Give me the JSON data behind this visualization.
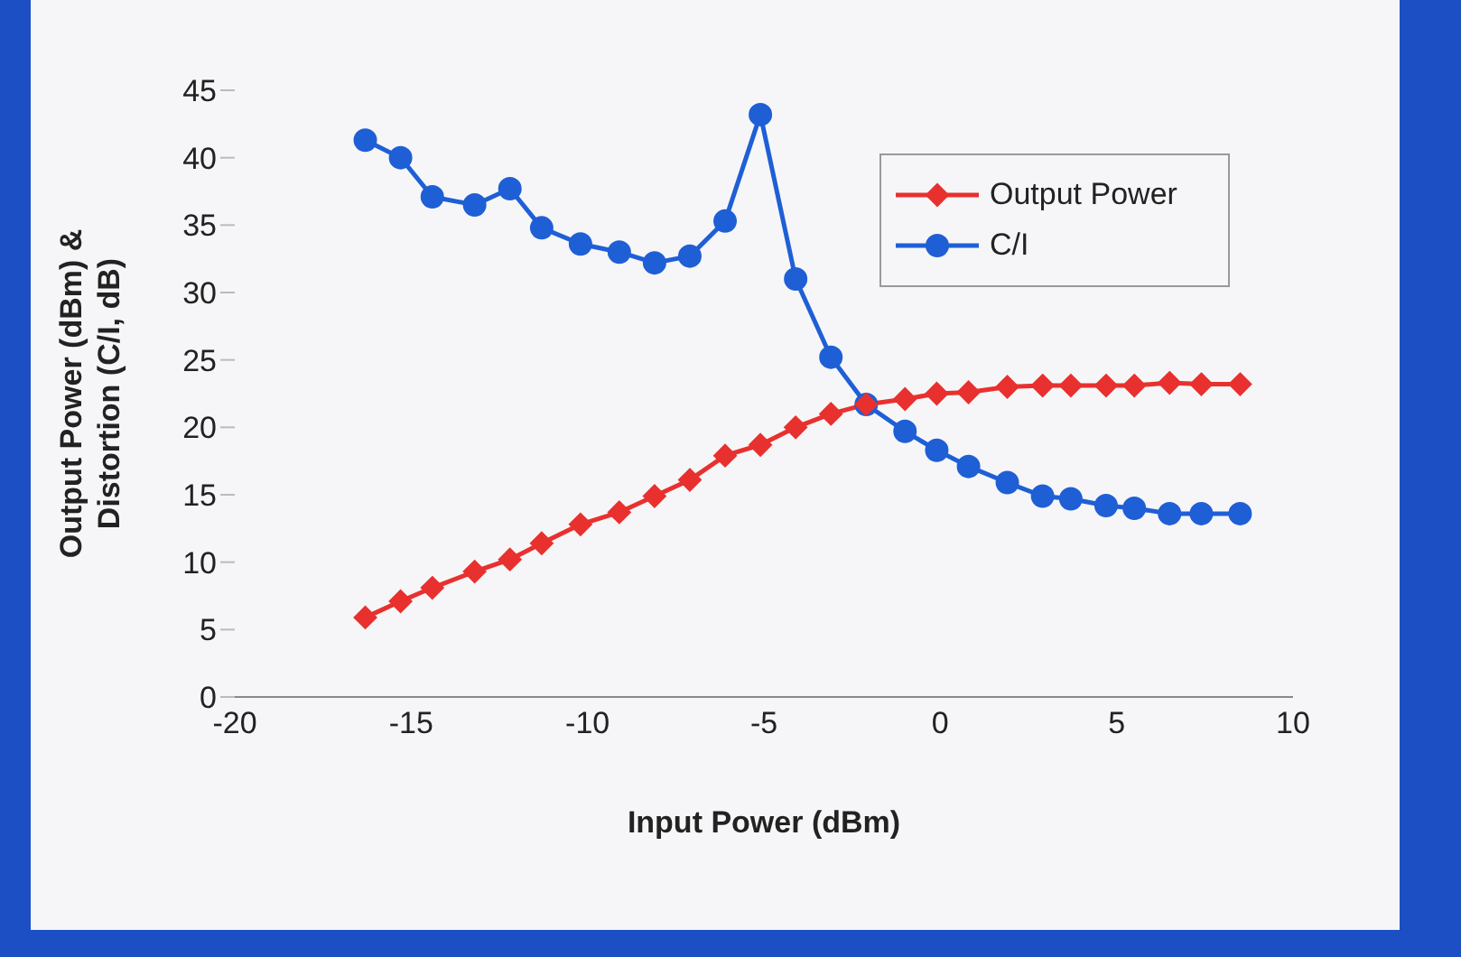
{
  "chart_data": {
    "type": "line",
    "xlabel": "Input Power (dBm)",
    "ylabel": "Output Power (dBm) & Distortion (C/I, dB)",
    "x": [
      -16.3,
      -15.3,
      -14.4,
      -13.2,
      -12.2,
      -11.3,
      -10.2,
      -9.1,
      -8.1,
      -7.1,
      -6.1,
      -5.1,
      -4.1,
      -3.1,
      -2.1,
      -1.0,
      -0.1,
      0.8,
      1.9,
      2.9,
      3.7,
      4.7,
      5.5,
      6.5,
      7.4,
      8.5
    ],
    "series": [
      {
        "name": "Output Power",
        "color": "#e8312f",
        "marker": "diamond",
        "values": [
          5.9,
          7.1,
          8.1,
          9.3,
          10.2,
          11.4,
          12.8,
          13.7,
          14.9,
          16.1,
          17.9,
          18.7,
          20.0,
          21.0,
          21.7,
          22.1,
          22.5,
          22.6,
          23.0,
          23.1,
          23.1,
          23.1,
          23.1,
          23.3,
          23.2,
          23.2
        ]
      },
      {
        "name": "C/I",
        "color": "#1f5fd6",
        "marker": "circle",
        "values": [
          41.3,
          40.0,
          37.1,
          36.5,
          37.7,
          34.8,
          33.6,
          33.0,
          32.2,
          32.7,
          35.3,
          43.2,
          31.0,
          25.2,
          21.7,
          19.7,
          18.3,
          17.1,
          15.9,
          14.9,
          14.7,
          14.2,
          14.0,
          13.6,
          13.6,
          13.6
        ]
      }
    ],
    "xlim": [
      -20,
      10
    ],
    "xticks": [
      -20,
      -15,
      -10,
      -5,
      0,
      5,
      10
    ],
    "ylim": [
      0,
      45
    ],
    "yticks": [
      0,
      5,
      10,
      15,
      20,
      25,
      30,
      35,
      40,
      45
    ],
    "legend": "top right",
    "line_style": "solid"
  }
}
